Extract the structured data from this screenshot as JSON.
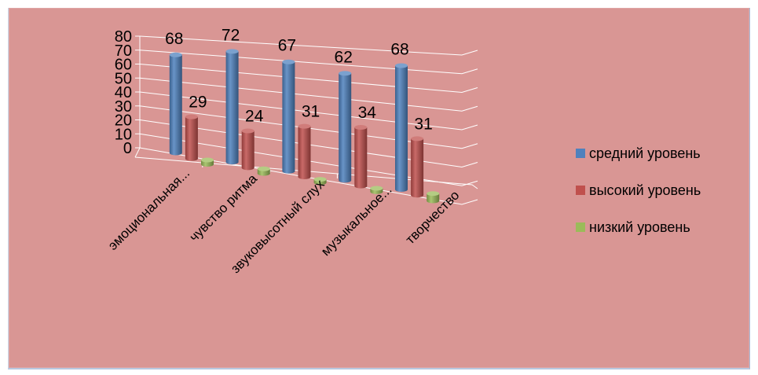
{
  "chart_data": {
    "type": "bar",
    "categories": [
      "эмоциональная...",
      "чувство ритма",
      "звуковысотный слух",
      "музыкальное...",
      "творчество"
    ],
    "series": [
      {
        "name": "средний уровень",
        "values": [
          68,
          72,
          67,
          62,
          68
        ],
        "color": "#4f81bd"
      },
      {
        "name": "высокий уровень",
        "values": [
          29,
          24,
          31,
          34,
          31
        ],
        "color": "#c0504d"
      },
      {
        "name": "низкий уровень",
        "values": [
          3,
          3,
          2,
          2,
          4
        ],
        "color": "#9bbb59"
      }
    ],
    "data_labels_series": [
      "средний уровень",
      "высокий уровень"
    ],
    "yticks": [
      "0",
      "10",
      "20",
      "30",
      "40",
      "50",
      "60",
      "70",
      "80"
    ],
    "ylim": [
      0,
      80
    ],
    "grid": true,
    "legend": "right",
    "style": "3d-cylinder"
  }
}
